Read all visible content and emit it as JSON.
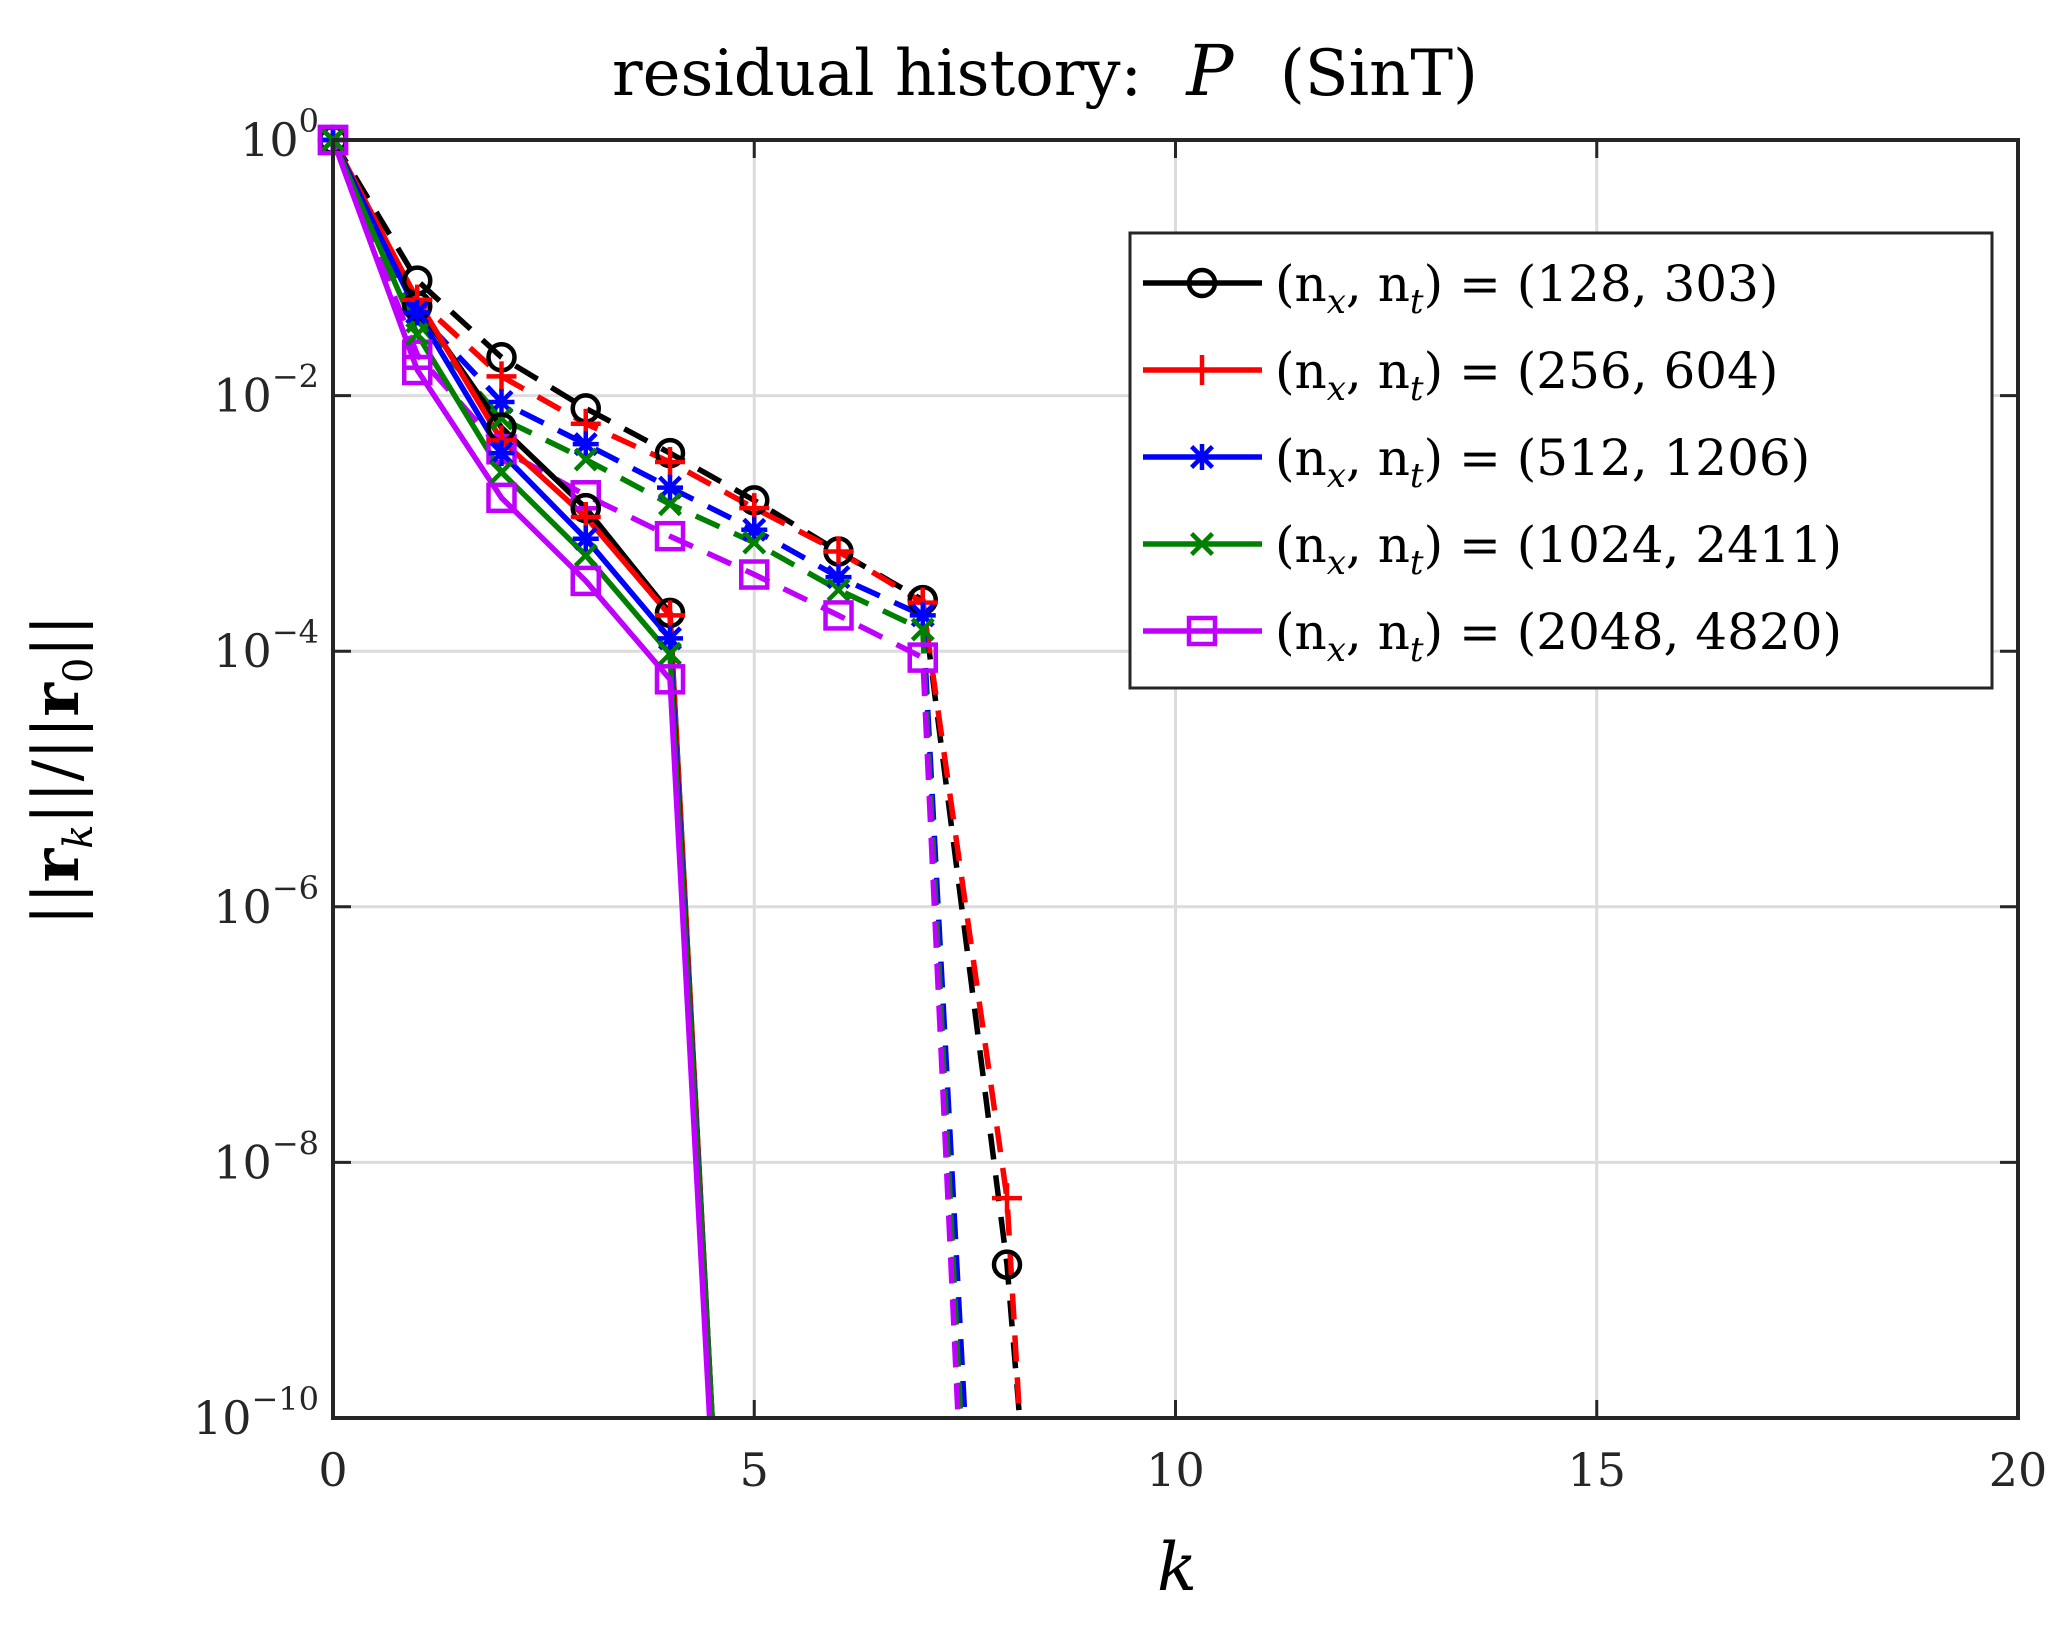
{
  "chart_data": {
    "type": "line",
    "title": "residual history: P̂ (SinT)",
    "title_parts": {
      "prefix": "residual history:",
      "symbol": "P",
      "suffix": "(SinT)"
    },
    "xlabel": "k",
    "ylabel": "||r_k|| / ||r_0||",
    "ylabel_parts": {
      "bar": "||",
      "vec": "r",
      "sub_k": "k",
      "sub_0": "0",
      "slash": "/"
    },
    "xlim": [
      0,
      20
    ],
    "ylim_log10": [
      -10,
      0
    ],
    "yscale": "log",
    "grid": true,
    "legend_position": "top-right",
    "x_ticks": [
      {
        "value": 0,
        "label": "0"
      },
      {
        "value": 5,
        "label": "5"
      },
      {
        "value": 10,
        "label": "10"
      },
      {
        "value": 15,
        "label": "15"
      },
      {
        "value": 20,
        "label": "20"
      }
    ],
    "y_ticks": [
      {
        "exp": 0,
        "base": "10",
        "power": "0"
      },
      {
        "exp": -2,
        "base": "10",
        "power": "−2"
      },
      {
        "exp": -4,
        "base": "10",
        "power": "−4"
      },
      {
        "exp": -6,
        "base": "10",
        "power": "−6"
      },
      {
        "exp": -8,
        "base": "10",
        "power": "−8"
      },
      {
        "exp": -10,
        "base": "10",
        "power": "−10"
      }
    ],
    "series": [
      {
        "name": "(n_x, n_t) = (128, 303)",
        "legend": {
          "lhs": "(n",
          "sx": "x",
          "mid": ", n",
          "st": "t",
          "rhs": ") = (128, 303)"
        },
        "color": "#000000",
        "marker": "circle",
        "solid": {
          "k": [
            0,
            1,
            2,
            3,
            4,
            4.5
          ],
          "log10": [
            0,
            -1.3,
            -2.25,
            -2.88,
            -3.7,
            -10
          ]
        },
        "dashed": {
          "k": [
            0,
            1,
            2,
            3,
            4,
            5,
            6,
            7,
            8,
            8.15
          ],
          "log10": [
            0,
            -1.1,
            -1.7,
            -2.1,
            -2.45,
            -2.82,
            -3.22,
            -3.6,
            -8.8,
            -10
          ]
        }
      },
      {
        "name": "(n_x, n_t) = (256, 604)",
        "legend": {
          "lhs": "(n",
          "sx": "x",
          "mid": ", n",
          "st": "t",
          "rhs": ") = (256, 604)"
        },
        "color": "#ff0000",
        "marker": "plus",
        "solid": {
          "k": [
            0,
            1,
            2,
            3,
            4,
            4.5
          ],
          "log10": [
            0,
            -1.25,
            -2.35,
            -2.95,
            -3.72,
            -10
          ]
        },
        "dashed": {
          "k": [
            0,
            1,
            2,
            3,
            4,
            5,
            6,
            7,
            8,
            8.15
          ],
          "log10": [
            0,
            -1.25,
            -1.85,
            -2.22,
            -2.52,
            -2.88,
            -3.22,
            -3.62,
            -8.28,
            -10
          ]
        }
      },
      {
        "name": "(n_x, n_t) = (512, 1206)",
        "legend": {
          "lhs": "(n",
          "sx": "x",
          "mid": ", n",
          "st": "t",
          "rhs": ") = (512, 1206)"
        },
        "color": "#0000ff",
        "marker": "asterisk",
        "solid": {
          "k": [
            0,
            1,
            2,
            3,
            4,
            4.5
          ],
          "log10": [
            0,
            -1.35,
            -2.45,
            -3.12,
            -3.9,
            -10
          ]
        },
        "dashed": {
          "k": [
            0,
            1,
            2,
            3,
            4,
            5,
            6,
            7,
            7.5
          ],
          "log10": [
            0,
            -1.35,
            -2.05,
            -2.38,
            -2.72,
            -3.05,
            -3.42,
            -3.72,
            -10
          ]
        }
      },
      {
        "name": "(n_x, n_t) = (1024, 2411)",
        "legend": {
          "lhs": "(n",
          "sx": "x",
          "mid": ", n",
          "st": "t",
          "rhs": ") = (1024, 2411)"
        },
        "color": "#008000",
        "marker": "x",
        "solid": {
          "k": [
            0,
            1,
            2,
            3,
            4,
            4.5
          ],
          "log10": [
            0,
            -1.52,
            -2.6,
            -3.25,
            -4.02,
            -10
          ]
        },
        "dashed": {
          "k": [
            0,
            1,
            2,
            3,
            4,
            5,
            6,
            7,
            7.45
          ],
          "log10": [
            0,
            -1.42,
            -2.18,
            -2.5,
            -2.85,
            -3.15,
            -3.52,
            -3.83,
            -10
          ]
        }
      },
      {
        "name": "(n_x, n_t) = (2048, 4820)",
        "legend": {
          "lhs": "(n",
          "sx": "x",
          "mid": ", n",
          "st": "t",
          "rhs": ") = (2048, 4820)"
        },
        "color": "#bf00ff",
        "marker": "square",
        "solid": {
          "k": [
            0,
            1,
            2,
            3,
            4,
            4.47
          ],
          "log10": [
            0,
            -1.8,
            -2.8,
            -3.45,
            -4.22,
            -10
          ]
        },
        "dashed": {
          "k": [
            0,
            1,
            2,
            3,
            4,
            5,
            6,
            7,
            7.42
          ],
          "log10": [
            0,
            -1.68,
            -2.42,
            -2.78,
            -3.1,
            -3.4,
            -3.72,
            -4.05,
            -10
          ]
        }
      }
    ]
  }
}
